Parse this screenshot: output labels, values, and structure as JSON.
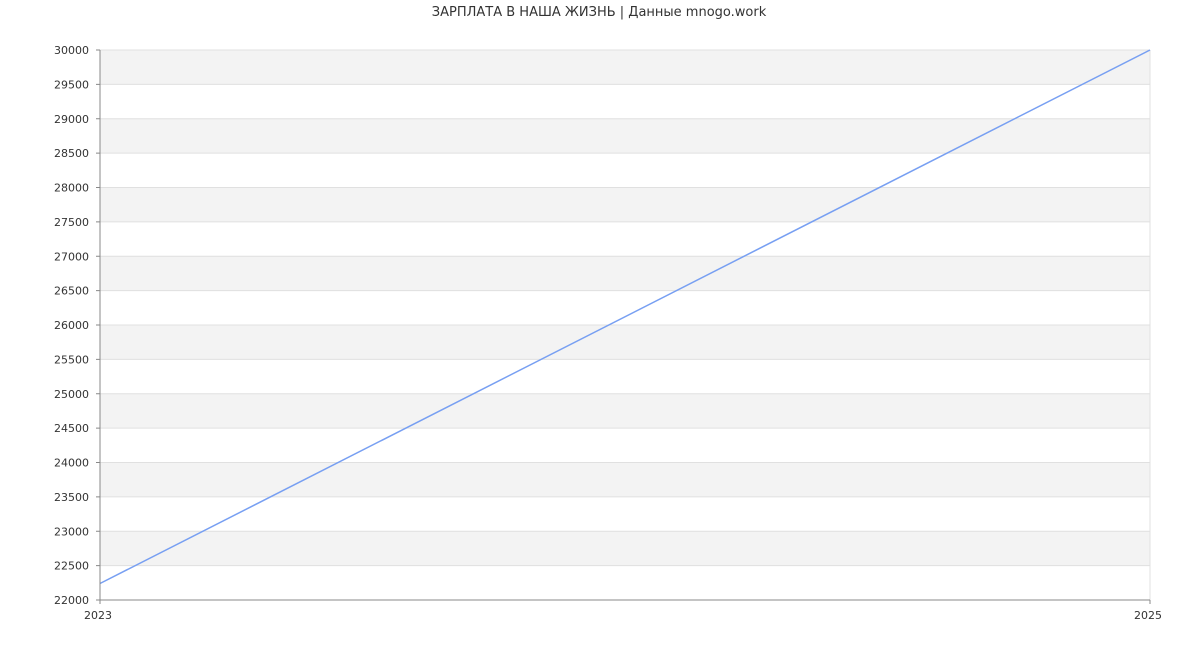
{
  "chart_data": {
    "type": "line",
    "title": "ЗАРПЛАТА В НАША ЖИЗНЬ | Данные mnogo.work",
    "xlabel": "",
    "ylabel": "",
    "x_ticks": [
      "2023",
      "2025"
    ],
    "xlim": [
      2023,
      2025
    ],
    "ylim": [
      22000,
      30000
    ],
    "y_ticks": [
      22000,
      22500,
      23000,
      23500,
      24000,
      24500,
      25000,
      25500,
      26000,
      26500,
      27000,
      27500,
      28000,
      28500,
      29000,
      29500,
      30000
    ],
    "grid": true,
    "series": [
      {
        "x": [
          2023,
          2025
        ],
        "values": [
          22240,
          30000
        ],
        "color": "#779ff2"
      }
    ],
    "band_color": "#f3f3f3",
    "grid_color": "#e0e0e0"
  }
}
